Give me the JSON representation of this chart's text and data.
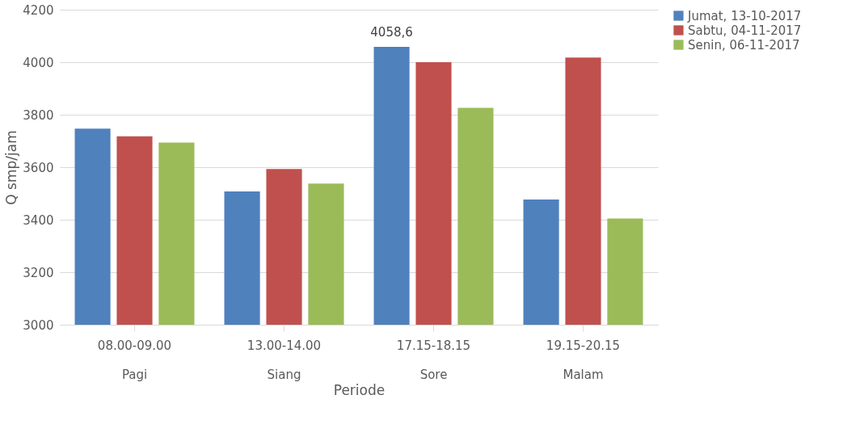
{
  "chart_data": {
    "type": "bar",
    "xlabel": "Periode",
    "ylabel": "Q smp/jam",
    "categories": [
      "08.00-09.00\nPagi",
      "13.00-14.00\nSiang",
      "17.15-18.15\nSore",
      "19.15-20.15\nMalam"
    ],
    "series": [
      {
        "name": "Jumat, 13-10-2017",
        "color": "#4f81bd",
        "values": [
          3747,
          3508,
          4058.6,
          3477
        ],
        "value_labels": [
          null,
          null,
          "4058,6",
          null
        ]
      },
      {
        "name": "Sabtu, 04-11-2017",
        "color": "#c0504d",
        "values": [
          3718,
          3593,
          4000,
          4018
        ]
      },
      {
        "name": "Senin, 06-11-2017",
        "color": "#9bbb59",
        "values": [
          3694,
          3538,
          3826,
          3405
        ]
      }
    ],
    "ylim": [
      3000,
      4200
    ],
    "yticks": [
      3000,
      3200,
      3400,
      3600,
      3800,
      4000,
      4200
    ],
    "grid": "y",
    "legend": "right"
  }
}
